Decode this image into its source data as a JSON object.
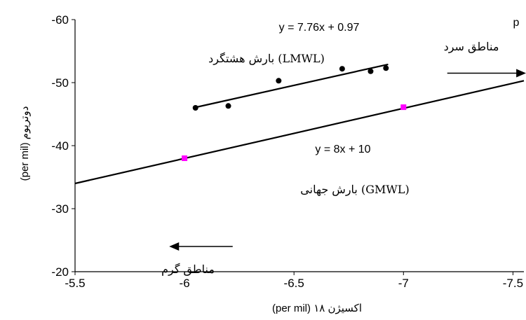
{
  "chart_data": {
    "type": "scatter",
    "xlabel": "اکسیژن ۱۸ (per mil)",
    "ylabel": "دوتریوم (per mil)",
    "x_ticks": [
      "-5.5",
      "-6",
      "-6.5",
      "-7",
      "-7.5"
    ],
    "y_ticks": [
      "-20",
      "-30",
      "-40",
      "-50",
      "-60"
    ],
    "xlim": [
      -5.5,
      -7.55
    ],
    "ylim": [
      -20,
      -60
    ],
    "grid": false,
    "series": [
      {
        "name": "",
        "marker": "circle",
        "color": "#000000",
        "points": [
          {
            "x": -6.05,
            "y": -46.0
          },
          {
            "x": -6.2,
            "y": -46.3
          },
          {
            "x": -6.43,
            "y": -50.3
          },
          {
            "x": -6.72,
            "y": -52.2
          },
          {
            "x": -6.85,
            "y": -51.8
          },
          {
            "x": -6.92,
            "y": -52.3
          }
        ]
      },
      {
        "name": "",
        "marker": "square",
        "color": "#ff00ff",
        "points": [
          {
            "x": -6.0,
            "y": -38.0
          },
          {
            "x": -7.0,
            "y": -46.1
          }
        ]
      }
    ],
    "lines": [
      {
        "x_from": -6.04,
        "x_to": -6.93,
        "y_from": -46.0,
        "y_to": -52.9,
        "color": "#000000"
      },
      {
        "x_from": -5.5,
        "x_to": -7.55,
        "y_from": -34.0,
        "y_to": -50.3,
        "color": "#000000"
      }
    ],
    "annotations": {
      "lmwl_equation": "y = 7.76x + 0.97",
      "gmwl_equation": "y = 8x + 10",
      "lmwl_label": "(LMWL) بارش هشتگرد",
      "gmwl_label": "(GMWL) بارش جهانی",
      "cold_regions": "مناطق سرد",
      "warm_regions": "مناطق گرم",
      "corner_letter": "p"
    },
    "arrows": [
      {
        "meaning": "cold",
        "direction": "right",
        "x_from": -7.2,
        "x_to": -7.56,
        "y": -51.5
      },
      {
        "meaning": "warm",
        "direction": "left",
        "x_from": -6.22,
        "x_to": -5.93,
        "y": -24.0
      }
    ]
  }
}
